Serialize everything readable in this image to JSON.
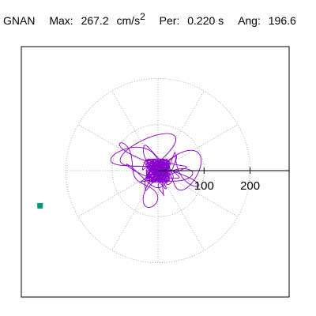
{
  "header": {
    "station": "GNAN",
    "max_label": "Max:",
    "max_value": "267.2",
    "max_unit": "cm/s",
    "max_unit_power": "2",
    "per_label": "Per:",
    "per_value": "0.220 s",
    "ang_label": "Ang:",
    "ang_value": "196.6"
  },
  "chart_data": {
    "type": "line",
    "axis_ticks": [
      "100",
      "200"
    ],
    "axis_tick_values": [
      100,
      200
    ],
    "ring_radii": [
      100,
      200
    ],
    "max_amplitude": 267.2,
    "max_angle_deg": 196.6,
    "colors": {
      "trace": "#8800cc",
      "grid": "#999999",
      "marker": "#009977",
      "axis": "#000000"
    }
  }
}
